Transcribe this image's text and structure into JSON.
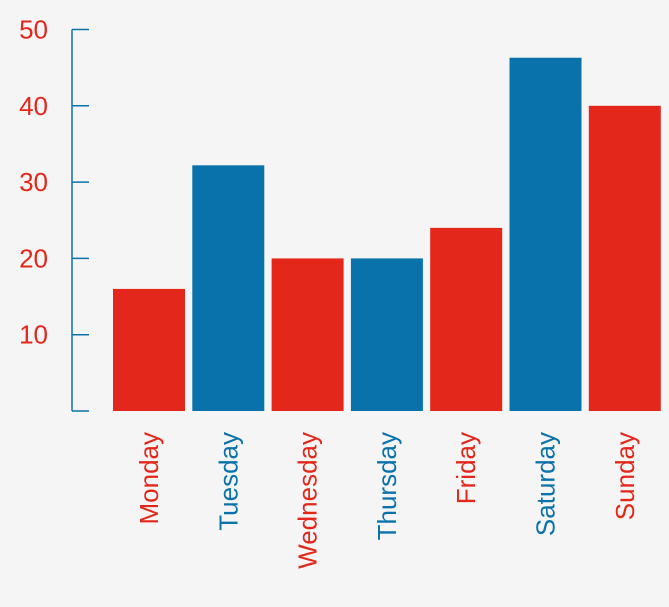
{
  "chart_data": {
    "type": "bar",
    "title": "",
    "xlabel": "",
    "ylabel": "",
    "categories": [
      "Monday",
      "Tuesday",
      "Wednesday",
      "Thursday",
      "Friday",
      "Saturday",
      "Sunday"
    ],
    "values": [
      16,
      32.2,
      20,
      20,
      24,
      46.3,
      40
    ],
    "ylim": [
      0,
      50
    ],
    "yticks": [
      10,
      20,
      30,
      40,
      50
    ],
    "grid": false,
    "colors": {
      "red": "#e3281b",
      "blue": "#0a72ab",
      "axis": "#0a72ab",
      "tick_label": "#e3281b",
      "background": "#f5f5f5"
    },
    "bar_colors": [
      "red",
      "blue",
      "red",
      "blue",
      "red",
      "blue",
      "red"
    ],
    "label_colors": [
      "red",
      "blue",
      "red",
      "blue",
      "red",
      "blue",
      "red"
    ]
  }
}
